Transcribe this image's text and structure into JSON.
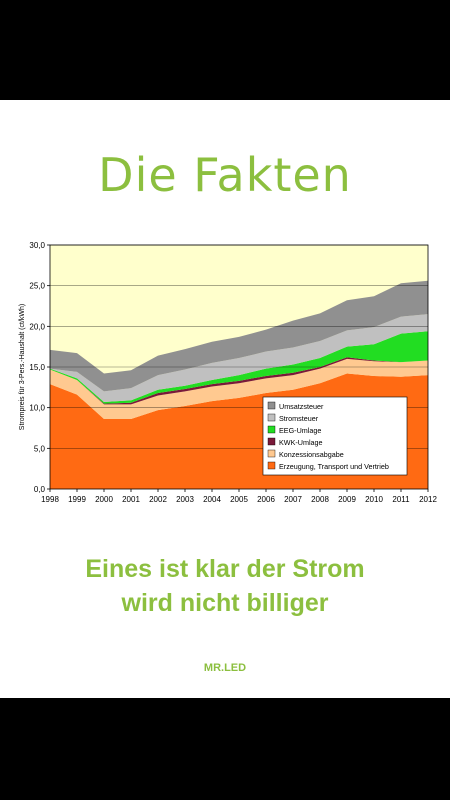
{
  "headline": "Die Fakten",
  "slogan": {
    "line1": "Eines ist klar der Strom",
    "line2": "wird nicht billiger"
  },
  "signature": "MR.LED",
  "chart_data": {
    "type": "area",
    "stacked": true,
    "ylabel": "Strompreis für 3-Pers.-Haushalt (ct/kWh)",
    "ylim": [
      0,
      30
    ],
    "yticks": [
      "0,0",
      "5,0",
      "10,0",
      "15,0",
      "20,0",
      "25,0",
      "30,0"
    ],
    "x": [
      "1998",
      "1999",
      "2000",
      "2001",
      "2002",
      "2003",
      "2004",
      "2005",
      "2006",
      "2007",
      "2008",
      "2009",
      "2010",
      "2011",
      "2012"
    ],
    "grid": true,
    "legend_position": "inside-right",
    "plot_background": "#ffffcc",
    "series": [
      {
        "name": "Erzeugung, Transport und Vertrieb",
        "color": "#ff6a13",
        "values": [
          12.9,
          11.6,
          8.6,
          8.6,
          9.7,
          10.2,
          10.8,
          11.2,
          11.8,
          12.2,
          13.0,
          14.2,
          13.9,
          13.8,
          14.0
        ]
      },
      {
        "name": "Konzessionsabgabe",
        "color": "#ffc990",
        "values": [
          1.8,
          1.8,
          1.8,
          1.8,
          1.8,
          1.8,
          1.8,
          1.8,
          1.8,
          1.8,
          1.8,
          1.8,
          1.8,
          1.8,
          1.8
        ]
      },
      {
        "name": "KWK-Umlage",
        "color": "#7a1a3a",
        "values": [
          0.0,
          0.0,
          0.1,
          0.2,
          0.3,
          0.3,
          0.3,
          0.3,
          0.3,
          0.3,
          0.2,
          0.2,
          0.1,
          0.0,
          0.0
        ]
      },
      {
        "name": "EEG-Umlage",
        "color": "#22dd22",
        "values": [
          0.1,
          0.2,
          0.2,
          0.3,
          0.4,
          0.4,
          0.5,
          0.7,
          0.9,
          1.0,
          1.1,
          1.3,
          2.0,
          3.5,
          3.6
        ]
      },
      {
        "name": "Stromsteuer",
        "color": "#c0c0c0",
        "values": [
          0.0,
          0.8,
          1.3,
          1.5,
          1.8,
          2.0,
          2.1,
          2.1,
          2.1,
          2.1,
          2.1,
          2.0,
          2.1,
          2.1,
          2.1
        ]
      },
      {
        "name": "Umsatzsteuer",
        "color": "#909090",
        "values": [
          2.3,
          2.3,
          2.2,
          2.2,
          2.4,
          2.5,
          2.6,
          2.6,
          2.7,
          3.3,
          3.4,
          3.7,
          3.8,
          4.1,
          4.1
        ]
      }
    ]
  }
}
